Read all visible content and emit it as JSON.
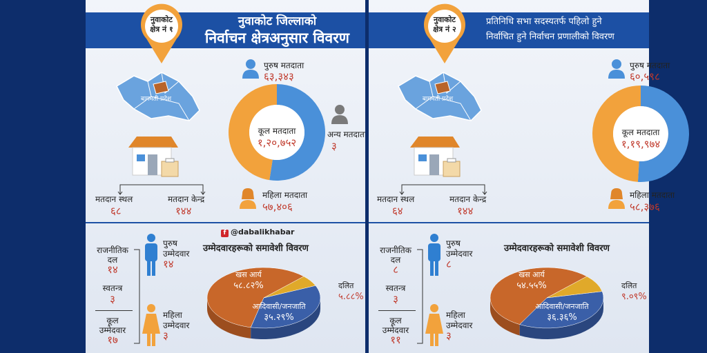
{
  "panel1": {
    "pin": {
      "line1": "नुवाकोट",
      "line2": "क्षेत्र नं १"
    },
    "title": {
      "line1": "नुवाकोट जिल्लाको",
      "line2": "निर्वाचन क्षेत्रअनुसार विवरण"
    },
    "map_label": "बागमती प्रदेश",
    "male_voters": {
      "label": "पुरुष मतदाता",
      "value": "६३,३४३"
    },
    "total_voters": {
      "label": "कूल मतदाता",
      "value": "१,२०,७५२"
    },
    "other_voters": {
      "label": "अन्य मतदाता",
      "value": "३"
    },
    "female_voters": {
      "label": "महिला मतदाता",
      "value": "५७,४०६"
    },
    "polling_place": {
      "label": "मतदान स्थल",
      "value": "६८"
    },
    "polling_center": {
      "label": "मतदान केन्द्र",
      "value": "१४४"
    },
    "facebook": "@dabalikhabar",
    "candidates": {
      "heading": "उम्मेदवारहरूको समावेशी विवरण",
      "party_label1": "राजनीतिक",
      "party_label2": "दल",
      "party_value": "१४",
      "indep_label": "स्वतन्त्र",
      "indep_value": "३",
      "total_label1": "कूल",
      "total_label2": "उम्मेदवार",
      "total_value": "१७",
      "male_label1": "पुरुष",
      "male_label2": "उम्मेदवार",
      "male_value": "१४",
      "female_label1": "महिला",
      "female_label2": "उम्मेदवार",
      "female_value": "३"
    }
  },
  "panel2": {
    "pin": {
      "line1": "नुवाकोट",
      "line2": "क्षेत्र नं २"
    },
    "title": {
      "line1": "प्रतिनिधि सभा सदस्यतर्फ पहिलो हुने",
      "line2": "निर्वाचित हुने निर्वाचन प्रणालीको विवरण"
    },
    "map_label": "बागमती प्रदेश",
    "male_voters": {
      "label": "पुरुष मतदाता",
      "value": "६०,५९८"
    },
    "total_voters": {
      "label": "कूल मतदाता",
      "value": "१,१९,९७४"
    },
    "female_voters": {
      "label": "महिला मतदाता",
      "value": "५८,३७६"
    },
    "polling_place": {
      "label": "मतदान स्थल",
      "value": "६४"
    },
    "polling_center": {
      "label": "मतदान केन्द्र",
      "value": "१४४"
    },
    "candidates": {
      "heading": "उम्मेदवारहरूको समावेशी विवरण",
      "party_label1": "राजनीतिक",
      "party_label2": "दल",
      "party_value": "८",
      "indep_label": "स्वतन्त्र",
      "indep_value": "३",
      "total_label1": "कूल",
      "total_label2": "उम्मेदवार",
      "total_value": "११",
      "male_label1": "पुरुष",
      "male_label2": "उम्मेदवार",
      "male_value": "८",
      "female_label1": "महिला",
      "female_label2": "उम्मेदवार",
      "female_value": "३"
    }
  },
  "colors": {
    "blue": "#4a90d9",
    "orange": "#f2a23c",
    "brown": "#c8672a",
    "navy": "#3a5fa8",
    "yellow": "#e0a92a",
    "red": "#c0392b"
  },
  "chart_data": [
    {
      "type": "pie",
      "subtype": "donut",
      "categories": [
        "पुरुष मतदाता",
        "महिला मतदाता",
        "अन्य मतदाता"
      ],
      "values": [
        63343,
        57406,
        3
      ],
      "total": 120752
    },
    {
      "type": "pie",
      "subtype": "donut",
      "categories": [
        "पुरुष मतदाता",
        "महिला मतदाता"
      ],
      "values": [
        60598,
        58376
      ],
      "total": 119974
    },
    {
      "type": "pie",
      "title": "उम्मेदवारहरूको समावेशी विवरण",
      "categories": [
        "खस आर्य",
        "आदिवासी/जनजाति",
        "दलित"
      ],
      "values": [
        58.82,
        35.29,
        5.88
      ],
      "labels": [
        "५८.८२%",
        "३५.२९%",
        "५.८८%"
      ]
    },
    {
      "type": "pie",
      "title": "उम्मेदवारहरूको समावेशी विवरण",
      "categories": [
        "खस आर्य",
        "आदिवासी/जनजाति",
        "दलित"
      ],
      "values": [
        54.55,
        36.36,
        9.09
      ],
      "labels": [
        "५४.५५%",
        "३६.३६%",
        "९.०९%"
      ]
    }
  ]
}
